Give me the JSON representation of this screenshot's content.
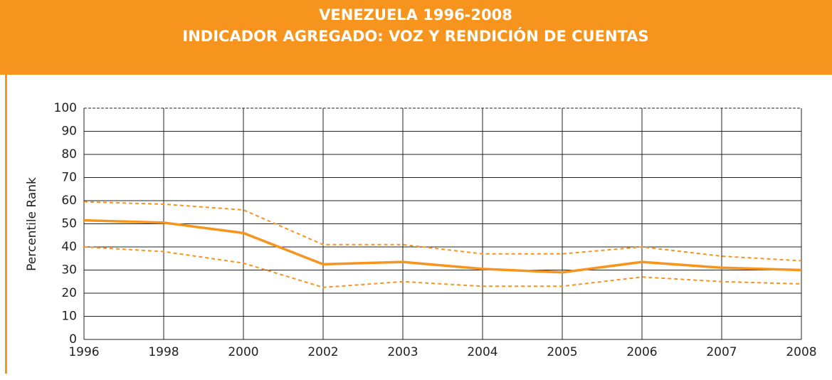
{
  "chart_data": {
    "type": "line",
    "title": "VENEZUELA 1996-2008",
    "subtitle": "INDICADOR AGREGADO: VOZ Y RENDICIÓN DE CUENTAS",
    "y_label": "Percentile Rank",
    "categories": [
      "1996",
      "1998",
      "2000",
      "2002",
      "2003",
      "2004",
      "2005",
      "2006",
      "2007",
      "2008"
    ],
    "series": [
      {
        "color": "#f7941d",
        "style": "solid",
        "values": [
          51.5,
          50.5,
          46,
          32.5,
          33.5,
          30.5,
          29,
          33.5,
          31,
          30
        ]
      },
      {
        "color": "#f7941d",
        "style": "dashed",
        "values": [
          59.5,
          58.5,
          56,
          41,
          41,
          37,
          37,
          40,
          36,
          34
        ]
      },
      {
        "color": "#f7941d",
        "style": "dashed",
        "values": [
          40,
          38,
          33,
          22.5,
          25,
          23,
          23,
          27,
          25,
          24
        ]
      }
    ],
    "ylim": [
      0,
      100
    ],
    "yticks": [
      0,
      10,
      20,
      30,
      40,
      50,
      60,
      70,
      80,
      90,
      100
    ],
    "grid": true
  }
}
